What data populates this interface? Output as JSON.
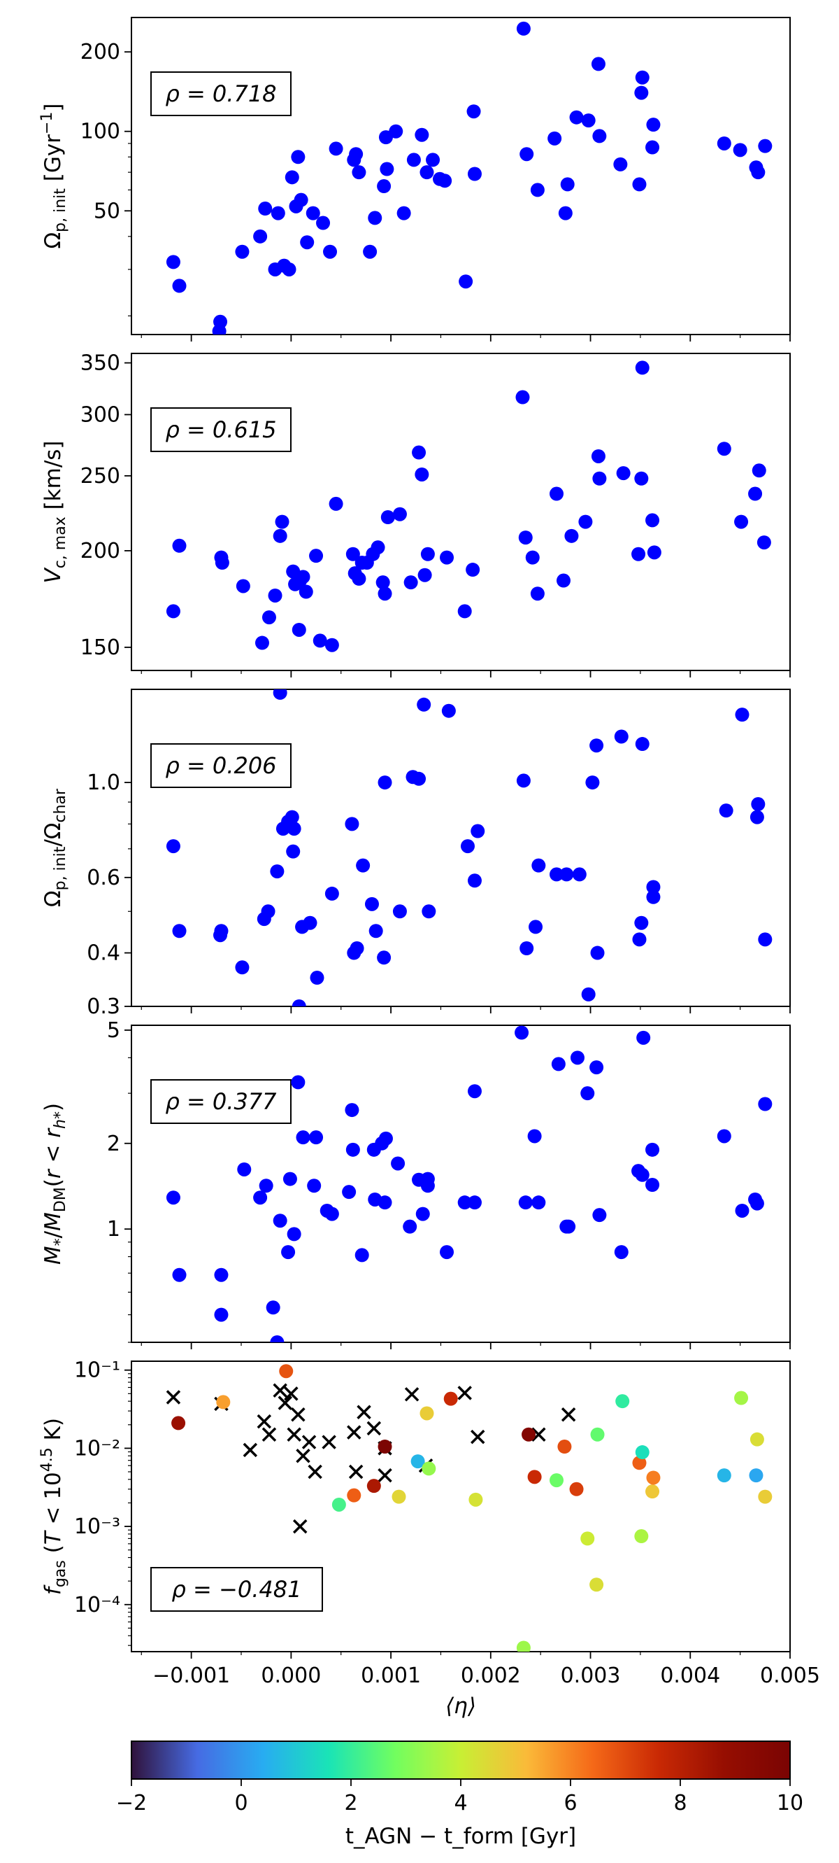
{
  "chart_data": [
    {
      "type": "scatter",
      "ylabel": "Ω_p,init [Gyr⁻¹]",
      "yscale": "log",
      "ylim": [
        17,
        270
      ],
      "yticks": [
        50,
        100,
        200
      ],
      "yticklabels": [
        "50",
        "100",
        "200"
      ],
      "annotation": "ρ = 0.718",
      "color": "#0000ff",
      "points": [
        [
          -0.00118,
          32
        ],
        [
          -0.00112,
          26
        ],
        [
          -0.00072,
          17.5
        ],
        [
          -0.00071,
          19
        ],
        [
          -0.00049,
          35
        ],
        [
          -0.00031,
          40
        ],
        [
          -0.00026,
          51
        ],
        [
          -0.00016,
          30
        ],
        [
          -0.00013,
          49
        ],
        [
          -7e-05,
          31
        ],
        [
          -2e-05,
          30
        ],
        [
          1e-05,
          67
        ],
        [
          5e-05,
          52
        ],
        [
          7e-05,
          80
        ],
        [
          0.0001,
          55
        ],
        [
          0.00016,
          38
        ],
        [
          0.00022,
          49
        ],
        [
          0.00032,
          45
        ],
        [
          0.00039,
          35
        ],
        [
          0.00063,
          78
        ],
        [
          0.00065,
          82
        ],
        [
          0.00068,
          70
        ],
        [
          0.00079,
          35
        ],
        [
          0.00084,
          47
        ],
        [
          0.00093,
          62
        ],
        [
          0.00095,
          95
        ],
        [
          0.00096,
          72
        ],
        [
          0.00105,
          100
        ],
        [
          0.00113,
          49
        ],
        [
          0.00123,
          78
        ],
        [
          0.00131,
          97
        ],
        [
          0.00136,
          70
        ],
        [
          0.00142,
          78
        ],
        [
          0.00154,
          65
        ],
        [
          0.00175,
          27
        ],
        [
          0.00183,
          119
        ],
        [
          0.00184,
          69
        ],
        [
          0.00233,
          245
        ],
        [
          0.00236,
          82
        ],
        [
          0.00247,
          60
        ],
        [
          0.00264,
          94
        ],
        [
          0.00275,
          49
        ],
        [
          0.00277,
          63
        ],
        [
          0.00286,
          113
        ],
        [
          0.00298,
          110
        ],
        [
          0.00308,
          180
        ],
        [
          0.00309,
          96
        ],
        [
          0.0033,
          75
        ],
        [
          0.00349,
          63
        ],
        [
          0.00351,
          140
        ],
        [
          0.00352,
          160
        ],
        [
          0.00362,
          87
        ],
        [
          0.00363,
          106
        ],
        [
          0.00434,
          90
        ],
        [
          0.0045,
          85
        ],
        [
          0.00466,
          73
        ],
        [
          0.00468,
          70
        ],
        [
          0.00475,
          88
        ],
        [
          0.00045,
          86
        ],
        [
          0.00149,
          66
        ]
      ]
    },
    {
      "type": "scatter",
      "ylabel": "V_c,max [km/s]",
      "yscale": "log",
      "ylim": [
        140,
        360
      ],
      "yticks": [
        150,
        200,
        250,
        300,
        350
      ],
      "yticklabels": [
        "150",
        "200",
        "250",
        "300",
        "350"
      ],
      "annotation": "ρ = 0.615",
      "color": "#0000ff",
      "points": [
        [
          -0.00118,
          167
        ],
        [
          -0.00112,
          203
        ],
        [
          -0.0007,
          196
        ],
        [
          -0.00069,
          193
        ],
        [
          -0.00048,
          180
        ],
        [
          -0.00029,
          152
        ],
        [
          -0.00022,
          164
        ],
        [
          -0.00016,
          175
        ],
        [
          -0.00011,
          209
        ],
        [
          -9e-05,
          218
        ],
        [
          2e-05,
          188
        ],
        [
          4e-05,
          181
        ],
        [
          8e-05,
          158
        ],
        [
          0.00012,
          185
        ],
        [
          0.00015,
          177
        ],
        [
          0.00025,
          197
        ],
        [
          0.00029,
          153
        ],
        [
          0.00041,
          151
        ],
        [
          0.00045,
          230
        ],
        [
          0.00062,
          198
        ],
        [
          0.00064,
          187
        ],
        [
          0.00068,
          184
        ],
        [
          0.00071,
          193
        ],
        [
          0.00076,
          193
        ],
        [
          0.00082,
          198
        ],
        [
          0.00087,
          202
        ],
        [
          0.00092,
          182
        ],
        [
          0.00094,
          176
        ],
        [
          0.00097,
          221
        ],
        [
          0.00109,
          223
        ],
        [
          0.0012,
          182
        ],
        [
          0.00128,
          268
        ],
        [
          0.00131,
          251
        ],
        [
          0.00134,
          186
        ],
        [
          0.00137,
          198
        ],
        [
          0.00156,
          196
        ],
        [
          0.00174,
          167
        ],
        [
          0.00182,
          189
        ],
        [
          0.00232,
          316
        ],
        [
          0.00235,
          208
        ],
        [
          0.00242,
          196
        ],
        [
          0.00247,
          176
        ],
        [
          0.00266,
          237
        ],
        [
          0.00273,
          183
        ],
        [
          0.00281,
          209
        ],
        [
          0.00295,
          218
        ],
        [
          0.00308,
          265
        ],
        [
          0.00309,
          248
        ],
        [
          0.00333,
          252
        ],
        [
          0.00348,
          198
        ],
        [
          0.00352,
          345
        ],
        [
          0.00351,
          248
        ],
        [
          0.00362,
          219
        ],
        [
          0.00364,
          199
        ],
        [
          0.00434,
          271
        ],
        [
          0.00451,
          218
        ],
        [
          0.00465,
          237
        ],
        [
          0.00469,
          254
        ],
        [
          0.00474,
          205
        ],
        [
          9e-05,
          183
        ]
      ]
    },
    {
      "type": "scatter",
      "ylabel": "Ω_p,init/Ω_char",
      "yscale": "log",
      "ylim": [
        0.3,
        1.65
      ],
      "yticks": [
        0.3,
        0.4,
        0.6,
        1.0
      ],
      "yticklabels": [
        "0.3",
        "0.4",
        "0.6",
        "1.0"
      ],
      "annotation": "ρ = 0.206",
      "color": "#0000ff",
      "points": [
        [
          -0.00118,
          0.71
        ],
        [
          -0.00112,
          0.45
        ],
        [
          -0.00071,
          0.44
        ],
        [
          -0.0007,
          0.45
        ],
        [
          -0.00049,
          0.37
        ],
        [
          -0.00027,
          0.48
        ],
        [
          -0.00023,
          0.5
        ],
        [
          -0.00014,
          0.62
        ],
        [
          -0.00011,
          1.62
        ],
        [
          -8e-05,
          0.78
        ],
        [
          -3e-05,
          0.81
        ],
        [
          1e-05,
          0.83
        ],
        [
          2e-05,
          0.69
        ],
        [
          8e-05,
          0.3
        ],
        [
          0.00011,
          0.46
        ],
        [
          0.00019,
          0.47
        ],
        [
          0.00026,
          0.35
        ],
        [
          0.00041,
          0.55
        ],
        [
          0.00061,
          0.8
        ],
        [
          0.00063,
          0.4
        ],
        [
          0.00066,
          0.41
        ],
        [
          0.00072,
          0.64
        ],
        [
          0.00081,
          0.52
        ],
        [
          0.00085,
          0.45
        ],
        [
          0.00093,
          0.39
        ],
        [
          0.00094,
          1.0
        ],
        [
          0.00109,
          0.5
        ],
        [
          0.00122,
          1.03
        ],
        [
          0.00128,
          1.02
        ],
        [
          0.00133,
          1.52
        ],
        [
          0.00138,
          0.5
        ],
        [
          0.00158,
          1.47
        ],
        [
          0.00177,
          0.71
        ],
        [
          0.00184,
          0.59
        ],
        [
          0.00187,
          0.77
        ],
        [
          0.00233,
          1.01
        ],
        [
          0.00236,
          0.41
        ],
        [
          0.00245,
          0.46
        ],
        [
          0.00248,
          0.64
        ],
        [
          0.00266,
          0.61
        ],
        [
          0.00276,
          0.61
        ],
        [
          0.00289,
          0.61
        ],
        [
          0.00298,
          0.32
        ],
        [
          0.00302,
          1.0
        ],
        [
          0.00307,
          0.4
        ],
        [
          0.00306,
          1.22
        ],
        [
          0.00331,
          1.28
        ],
        [
          0.00349,
          0.43
        ],
        [
          0.00351,
          0.47
        ],
        [
          0.00352,
          1.23
        ],
        [
          0.00363,
          0.57
        ],
        [
          0.00363,
          0.54
        ],
        [
          0.00436,
          0.86
        ],
        [
          0.00452,
          1.44
        ],
        [
          0.00468,
          0.89
        ],
        [
          0.00467,
          0.83
        ],
        [
          0.00475,
          0.43
        ],
        [
          3e-05,
          0.78
        ]
      ]
    },
    {
      "type": "scatter",
      "ylabel": "M*/M_DM(r < r_h*)",
      "yscale": "log",
      "ylim": [
        0.4,
        5.2
      ],
      "yticks": [
        1,
        2,
        5
      ],
      "yticklabels": [
        "1",
        "2",
        "5"
      ],
      "annotation": "ρ = 0.377",
      "color": "#0000ff",
      "points": [
        [
          -0.00118,
          1.29
        ],
        [
          -0.00112,
          0.69
        ],
        [
          -0.0007,
          0.69
        ],
        [
          -0.0007,
          0.5
        ],
        [
          -0.00047,
          1.62
        ],
        [
          -0.00031,
          1.29
        ],
        [
          -0.00025,
          1.42
        ],
        [
          -0.00018,
          0.53
        ],
        [
          -0.00014,
          0.4
        ],
        [
          -0.00011,
          1.07
        ],
        [
          -3e-05,
          0.83
        ],
        [
          -1e-05,
          1.5
        ],
        [
          3e-05,
          0.96
        ],
        [
          7e-05,
          3.28
        ],
        [
          0.00012,
          2.1
        ],
        [
          0.00023,
          1.42
        ],
        [
          0.00025,
          2.1
        ],
        [
          0.00036,
          1.16
        ],
        [
          0.00041,
          1.13
        ],
        [
          0.00058,
          1.35
        ],
        [
          0.00061,
          2.62
        ],
        [
          0.00062,
          1.9
        ],
        [
          0.00071,
          0.81
        ],
        [
          0.00083,
          1.9
        ],
        [
          0.00084,
          1.27
        ],
        [
          0.00091,
          2.0
        ],
        [
          0.00095,
          2.08
        ],
        [
          0.00094,
          1.24
        ],
        [
          0.00107,
          1.7
        ],
        [
          0.00119,
          1.02
        ],
        [
          0.00128,
          1.49
        ],
        [
          0.00132,
          1.13
        ],
        [
          0.00137,
          1.42
        ],
        [
          0.00137,
          1.5
        ],
        [
          0.00156,
          0.83
        ],
        [
          0.00174,
          1.24
        ],
        [
          0.00184,
          3.05
        ],
        [
          0.00184,
          1.24
        ],
        [
          0.00231,
          4.9
        ],
        [
          0.00235,
          1.24
        ],
        [
          0.00244,
          2.12
        ],
        [
          0.00248,
          1.24
        ],
        [
          0.00268,
          3.8
        ],
        [
          0.00276,
          1.02
        ],
        [
          0.00278,
          1.02
        ],
        [
          0.00287,
          4.0
        ],
        [
          0.00297,
          3.0
        ],
        [
          0.00306,
          3.7
        ],
        [
          0.00309,
          1.12
        ],
        [
          0.00331,
          0.83
        ],
        [
          0.00348,
          1.6
        ],
        [
          0.00352,
          1.55
        ],
        [
          0.00353,
          4.7
        ],
        [
          0.00362,
          1.9
        ],
        [
          0.00362,
          1.43
        ],
        [
          0.00434,
          2.12
        ],
        [
          0.00452,
          1.16
        ],
        [
          0.00465,
          1.27
        ],
        [
          0.00467,
          1.23
        ],
        [
          0.00475,
          2.75
        ]
      ]
    },
    {
      "type": "scatter",
      "ylabel": "f_gas (T < 10^4.5 K)",
      "yscale": "log",
      "ylim": [
        2.5e-05,
        0.13
      ],
      "yticks": [
        0.0001,
        0.001,
        0.01,
        0.1
      ],
      "yticklabels": [
        "10⁻⁴",
        "10⁻³",
        "10⁻²",
        "10⁻¹"
      ],
      "xlabel": "⟨η⟩",
      "xlim": [
        -0.0016,
        0.005
      ],
      "xticks": [
        -0.001,
        0.0,
        0.001,
        0.002,
        0.003,
        0.004,
        0.005
      ],
      "xticklabels": [
        "−0.001",
        "0.000",
        "0.001",
        "0.002",
        "0.003",
        "0.004",
        "0.005"
      ],
      "annotation": "ρ = −0.481",
      "colorscale": "turbo",
      "crosses": [
        [
          -0.00118,
          0.045
        ],
        [
          -0.0007,
          0.037
        ],
        [
          -0.00041,
          0.0095
        ],
        [
          -0.00027,
          0.022
        ],
        [
          -0.00022,
          0.015
        ],
        [
          -0.00011,
          0.055
        ],
        [
          -6e-05,
          0.038
        ],
        [
          0.0,
          0.05
        ],
        [
          3e-05,
          0.015
        ],
        [
          7e-05,
          0.027
        ],
        [
          9e-05,
          0.001
        ],
        [
          0.00012,
          0.008
        ],
        [
          0.00018,
          0.012
        ],
        [
          0.00024,
          0.005
        ],
        [
          0.00038,
          0.012
        ],
        [
          0.00065,
          0.005
        ],
        [
          0.00063,
          0.016
        ],
        [
          0.00073,
          0.029
        ],
        [
          0.00083,
          0.018
        ],
        [
          0.00094,
          0.0045
        ],
        [
          0.00094,
          0.01
        ],
        [
          0.00121,
          0.049
        ],
        [
          0.00135,
          0.006
        ],
        [
          0.00174,
          0.051
        ],
        [
          0.00187,
          0.014
        ],
        [
          0.00248,
          0.015
        ],
        [
          0.00278,
          0.027
        ]
      ],
      "points": [
        [
          -0.00113,
          0.021,
          8.7
        ],
        [
          -0.00068,
          0.039,
          5.6
        ],
        [
          -5e-05,
          0.097,
          6.8
        ],
        [
          0.00048,
          0.0019,
          2.2
        ],
        [
          0.00063,
          0.0025,
          6.6
        ],
        [
          0.00083,
          0.0033,
          8.3
        ],
        [
          0.00094,
          0.0105,
          9.9
        ],
        [
          0.00108,
          0.0024,
          4.6
        ],
        [
          0.00127,
          0.0068,
          0.6
        ],
        [
          0.00136,
          0.028,
          4.8
        ],
        [
          0.00138,
          0.0055,
          3.3
        ],
        [
          0.0016,
          0.043,
          7.6
        ],
        [
          0.00185,
          0.0022,
          4.3
        ],
        [
          0.00233,
          2.8e-05,
          3.4
        ],
        [
          0.00238,
          0.015,
          9.6
        ],
        [
          0.00244,
          0.0043,
          7.6
        ],
        [
          0.00266,
          0.0039,
          2.7
        ],
        [
          0.00274,
          0.0105,
          6.9
        ],
        [
          0.00286,
          0.003,
          7.2
        ],
        [
          0.00297,
          0.0007,
          4.1
        ],
        [
          0.00306,
          0.00018,
          4.4
        ],
        [
          0.00307,
          0.015,
          2.6
        ],
        [
          0.00332,
          0.04,
          1.9
        ],
        [
          0.00349,
          0.0065,
          6.6
        ],
        [
          0.00352,
          0.0089,
          1.5
        ],
        [
          0.00351,
          0.00075,
          3.6
        ],
        [
          0.00362,
          0.0028,
          4.9
        ],
        [
          0.00363,
          0.0042,
          6.1
        ],
        [
          0.00434,
          0.0045,
          0.6
        ],
        [
          0.00451,
          0.044,
          3.5
        ],
        [
          0.00466,
          0.0045,
          0.3
        ],
        [
          0.00467,
          0.013,
          4.4
        ],
        [
          0.00475,
          0.0024,
          4.8
        ]
      ]
    }
  ],
  "colorbar": {
    "label": "t_AGN − t_form [Gyr]",
    "range": [
      -2,
      10
    ],
    "ticks": [
      -2,
      0,
      2,
      4,
      6,
      8,
      10
    ],
    "ticklabels": [
      "−2",
      "0",
      "2",
      "4",
      "6",
      "8",
      "10"
    ],
    "colormap": "turbo"
  },
  "colors": {
    "points": "#0000ff",
    "crosses": "#000000",
    "frame": "#000000"
  }
}
